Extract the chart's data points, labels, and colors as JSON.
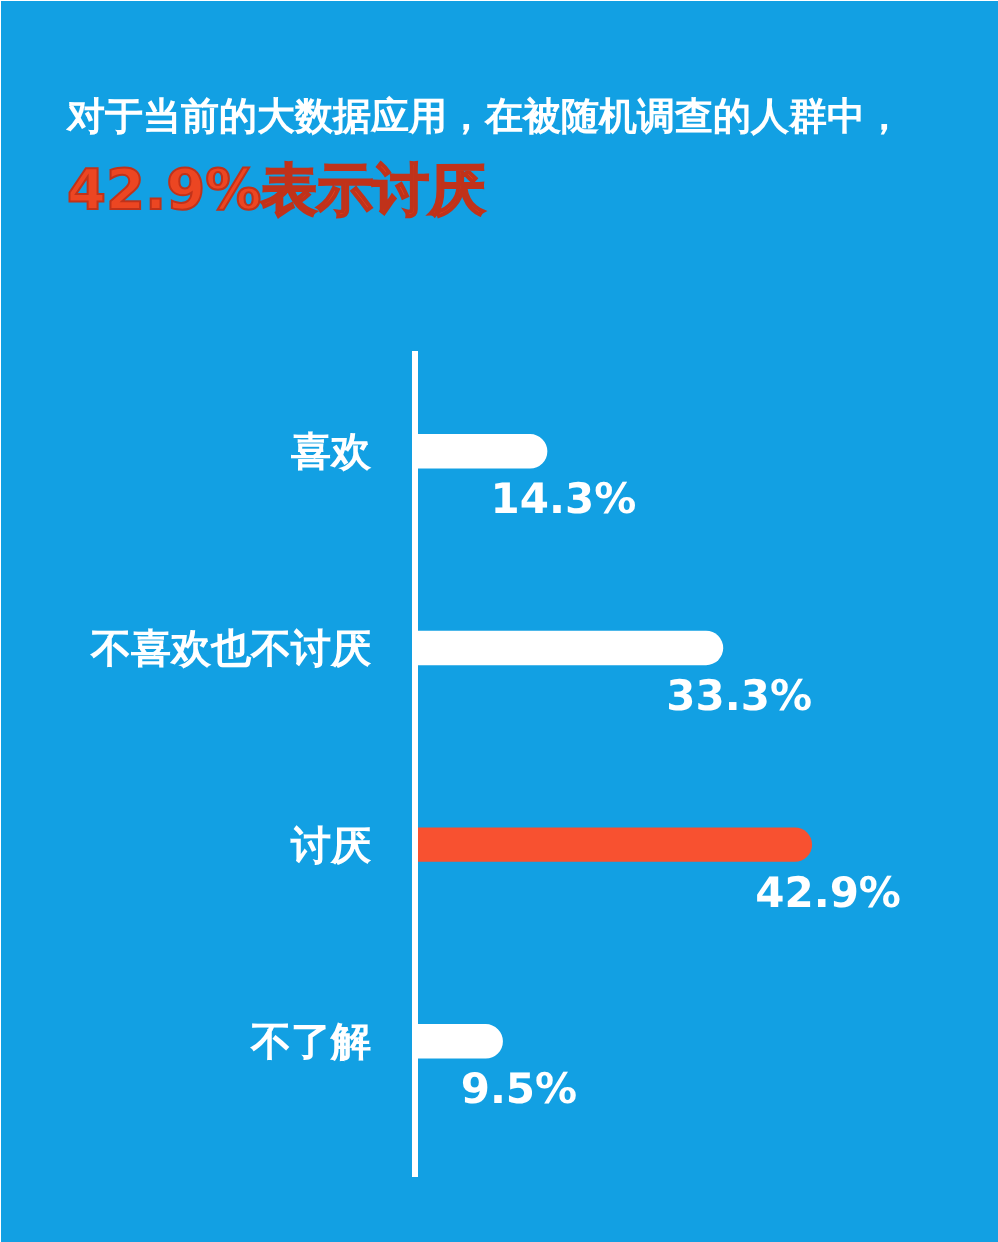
{
  "chart_data": {
    "type": "bar",
    "orientation": "horizontal",
    "title": "对于当前的大数据应用，在被随机调查的人群中，",
    "subtitle": "42.9%表示讨厌",
    "categories": [
      "喜欢",
      "不喜欢也不讨厌",
      "讨厌",
      "不了解"
    ],
    "values": [
      14.3,
      33.3,
      42.9,
      9.5
    ],
    "colors": [
      "#ffffff",
      "#ffffff",
      "#f85130",
      "#ffffff"
    ],
    "value_labels": [
      "14.3%",
      "33.3%",
      "42.9%",
      "9.5%"
    ],
    "tick_labels": "y",
    "grid": false
  }
}
